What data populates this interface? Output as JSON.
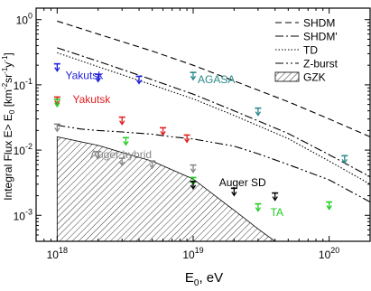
{
  "chart_data": {
    "type": "scatter",
    "xlabel_base": "E",
    "xlabel_sub": "0",
    "xlabel_rest": ",  eV",
    "ylabel": "Integral Flux E> E",
    "ylabel_sub": "0",
    "ylabel_units": "[km",
    "ylabel_units2": "sr",
    "ylabel_units3": "y",
    "ylabel_units_end": "]",
    "ylabel_exp": "-2",
    "ylabel_exp2": "-1",
    "ylabel_exp3": "-1",
    "xscale": "log",
    "yscale": "log",
    "xlim": [
      7e+17,
      2e+20
    ],
    "ylim": [
      0.0004,
      1.5
    ],
    "x_ticks": [
      {
        "value": 1e+18,
        "base": "10",
        "exp": "18"
      },
      {
        "value": 1e+19,
        "base": "10",
        "exp": "19"
      },
      {
        "value": 1e+20,
        "base": "10",
        "exp": "20"
      }
    ],
    "y_ticks": [
      {
        "value": 0.001,
        "base": "10",
        "exp": "-3"
      },
      {
        "value": 0.01,
        "base": "10",
        "exp": "-2"
      },
      {
        "value": 0.1,
        "base": "10",
        "exp": "-1"
      },
      {
        "value": 1,
        "base": "10",
        "exp": "0"
      }
    ],
    "curves": [
      {
        "name": "SHDM",
        "dash": "7,4",
        "points": [
          [
            1e+18,
            0.95
          ],
          [
            2e+18,
            0.6
          ],
          [
            5e+18,
            0.33
          ],
          [
            1e+19,
            0.2
          ],
          [
            2e+19,
            0.115
          ],
          [
            5e+19,
            0.055
          ],
          [
            1e+20,
            0.03
          ],
          [
            2e+20,
            0.016
          ]
        ]
      },
      {
        "name": "SHDM'",
        "dash": "9,3,2,3",
        "points": [
          [
            1e+18,
            0.37
          ],
          [
            2e+18,
            0.23
          ],
          [
            5e+18,
            0.12
          ],
          [
            1e+19,
            0.072
          ],
          [
            2e+19,
            0.04
          ],
          [
            5e+19,
            0.018
          ],
          [
            1e+20,
            0.0085
          ],
          [
            2e+20,
            0.0039
          ]
        ]
      },
      {
        "name": "TD",
        "dash": "1.5,2",
        "points": [
          [
            1e+18,
            0.31
          ],
          [
            2e+18,
            0.19
          ],
          [
            5e+18,
            0.1
          ],
          [
            1e+19,
            0.061
          ],
          [
            2e+19,
            0.034
          ],
          [
            5e+19,
            0.015
          ],
          [
            1e+20,
            0.0068
          ],
          [
            2e+20,
            0.003
          ]
        ]
      },
      {
        "name": "Z-burst",
        "dash": "9,3,2,3,2,3",
        "points": [
          [
            1e+18,
            0.024
          ],
          [
            1.5e+18,
            0.021
          ],
          [
            2e+18,
            0.02
          ],
          [
            3e+18,
            0.019
          ],
          [
            5e+18,
            0.0175
          ],
          [
            7e+18,
            0.016
          ],
          [
            1e+19,
            0.0148
          ],
          [
            2e+19,
            0.0115
          ],
          [
            3e+19,
            0.0088
          ],
          [
            5e+19,
            0.006
          ],
          [
            1e+20,
            0.0035
          ],
          [
            2e+20,
            0.0016
          ]
        ]
      }
    ],
    "gzk_region": [
      [
        1e+18,
        0.0004
      ],
      [
        1e+18,
        0.016
      ],
      [
        2e+18,
        0.0118
      ],
      [
        3e+18,
        0.0092
      ],
      [
        5e+18,
        0.0068
      ],
      [
        1e+19,
        0.0036
      ],
      [
        2e+19,
        0.0012
      ],
      [
        3e+19,
        0.00062
      ],
      [
        4e+19,
        0.0004
      ]
    ],
    "series": [
      {
        "name": "Yakutsk",
        "color": "#1f1fdd",
        "points": [
          [
            1e+18,
            0.21
          ],
          [
            2e+18,
            0.145
          ],
          [
            4e+18,
            0.135
          ]
        ]
      },
      {
        "name": "AGASA",
        "color": "#2a8a8a",
        "points": [
          [
            1e+19,
            0.155
          ],
          [
            3e+19,
            0.044
          ],
          [
            1.3e+20,
            0.0082
          ]
        ]
      },
      {
        "name": "Yakutsk",
        "color": "#e02020",
        "points": [
          [
            1e+18,
            0.065
          ],
          [
            3e+18,
            0.032
          ],
          [
            6e+18,
            0.022
          ],
          [
            9e+18,
            0.017
          ]
        ]
      },
      {
        "name": "Auger hybrid",
        "color": "#888888",
        "points": [
          [
            1e+18,
            0.025
          ],
          [
            2e+18,
            0.0095
          ],
          [
            3e+18,
            0.0075
          ],
          [
            5e+18,
            0.0068
          ],
          [
            1e+19,
            0.0059
          ]
        ]
      },
      {
        "name": "TA",
        "color": "#22cc22",
        "points": [
          [
            1e+18,
            0.06
          ],
          [
            3.2e+18,
            0.0155
          ],
          [
            1e+19,
            0.0038
          ],
          [
            3e+19,
            0.0015
          ],
          [
            1e+20,
            0.0016
          ]
        ]
      },
      {
        "name": "Auger SD",
        "color": "#000000",
        "points": [
          [
            1e+19,
            0.0033
          ],
          [
            2e+19,
            0.0026
          ],
          [
            4e+19,
            0.0022
          ]
        ]
      }
    ],
    "labels": [
      {
        "text": "Yakutsk",
        "color": "#1f1fdd",
        "x": 1.15e+18,
        "y": 0.145
      },
      {
        "text": "AGASA",
        "color": "#2a8a8a",
        "x": 1.08e+19,
        "y": 0.125
      },
      {
        "text": "Yakutsk",
        "color": "#e02020",
        "x": 1.3e+18,
        "y": 0.062
      },
      {
        "text": "Auger hybrid",
        "color": "#888888",
        "x": 1.75e+18,
        "y": 0.0088
      },
      {
        "text": "Auger SD",
        "color": "#000000",
        "x": 1.55e+19,
        "y": 0.0033
      },
      {
        "text": "TA",
        "color": "#22cc22",
        "x": 3.7e+19,
        "y": 0.00115
      }
    ],
    "legend": {
      "placement": "top-right",
      "entries": [
        {
          "name": "SHDM",
          "type": "line",
          "dash": "7,4"
        },
        {
          "name": "SHDM'",
          "type": "line",
          "dash": "9,3,2,3"
        },
        {
          "name": "TD",
          "type": "line",
          "dash": "1.5,2"
        },
        {
          "name": "Z-burst",
          "type": "line",
          "dash": "9,3,2,3,2,3"
        },
        {
          "name": "GZK",
          "type": "hatch"
        }
      ]
    }
  }
}
